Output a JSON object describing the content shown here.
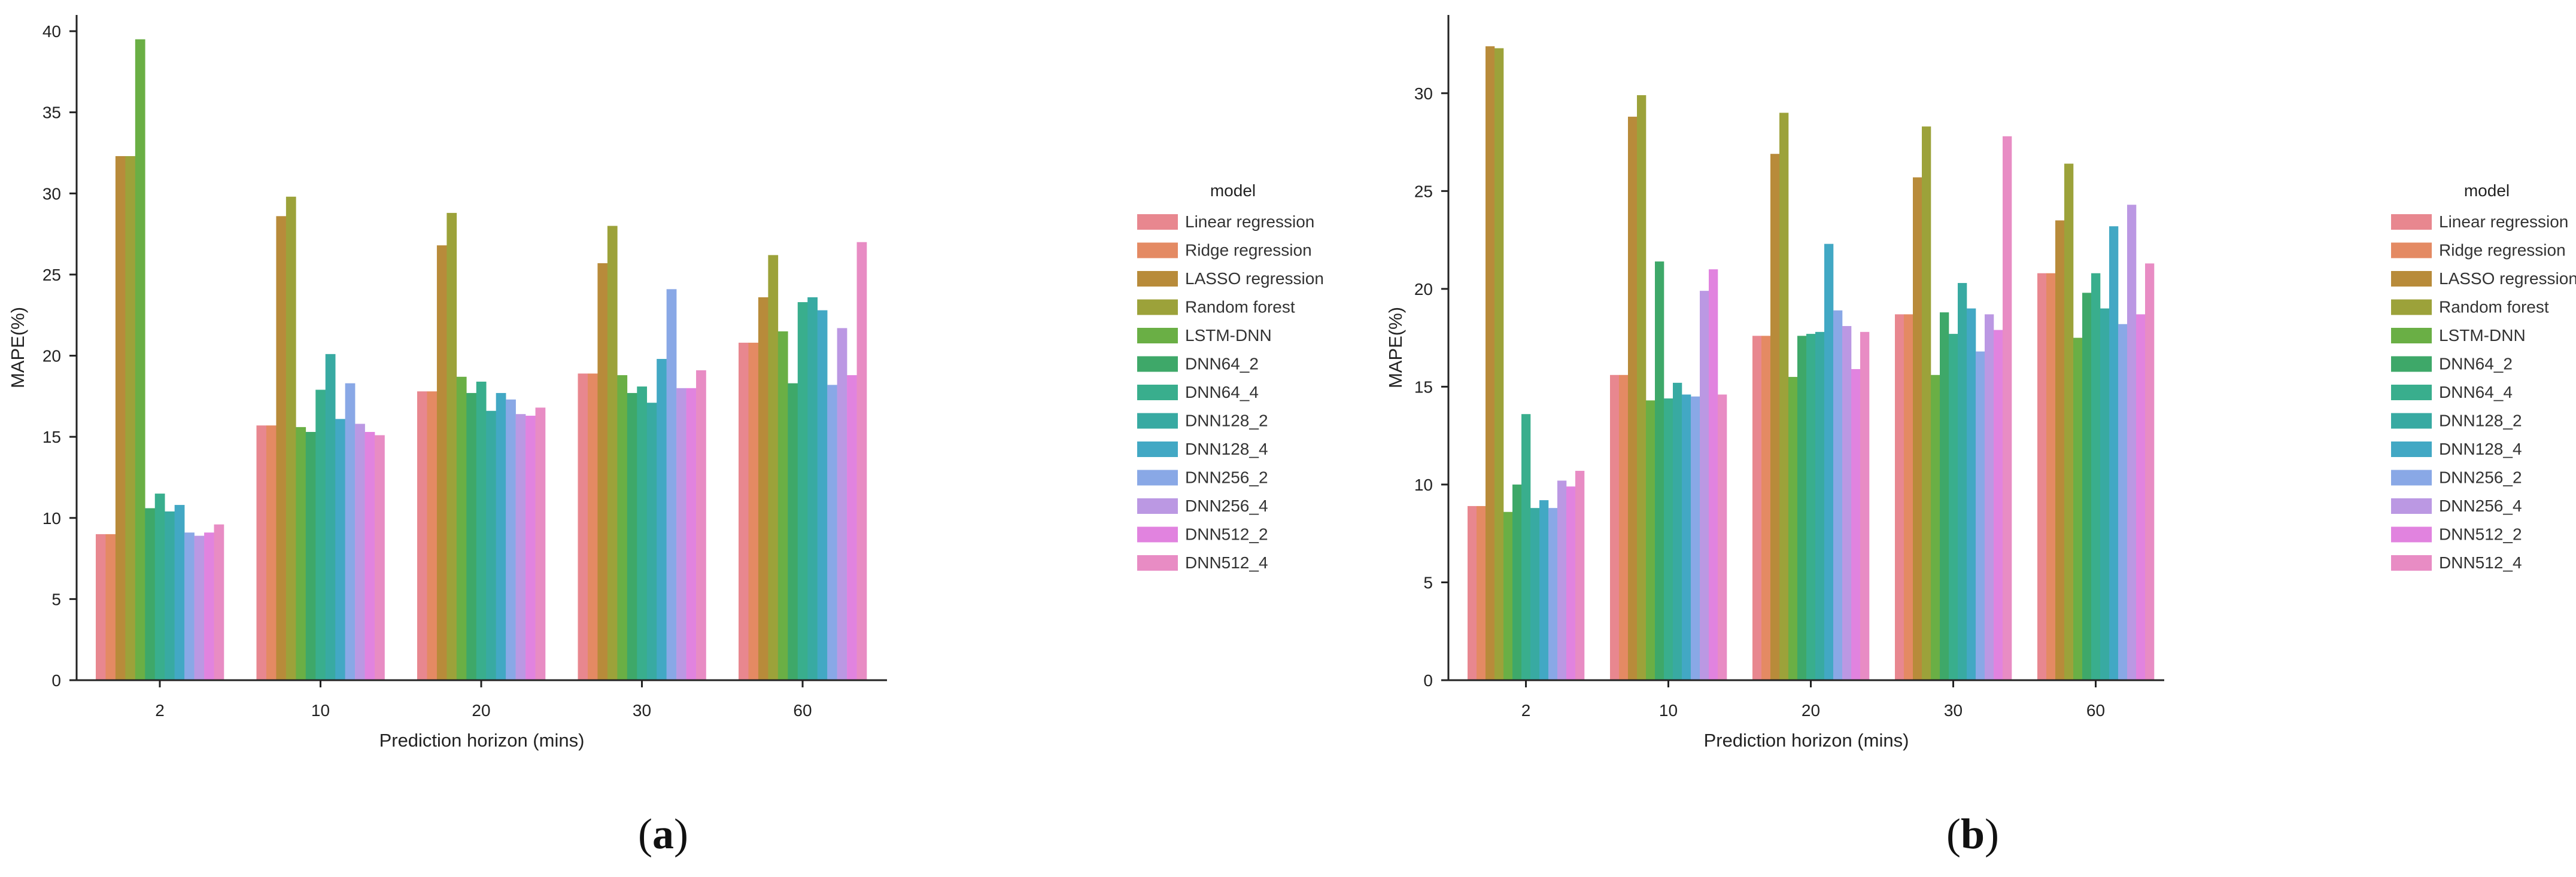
{
  "chart_data": [
    {
      "type": "bar",
      "panel_label": {
        "open": "(",
        "letter": "a",
        "close": ")"
      },
      "xlabel": "Prediction horizon (mins)",
      "ylabel": "MAPE(%)",
      "ylim": [
        0,
        41
      ],
      "yticks": [
        0,
        5,
        10,
        15,
        20,
        25,
        30,
        35,
        40
      ],
      "categories": [
        "2",
        "10",
        "20",
        "30",
        "60"
      ],
      "legend_title": "model",
      "legend_position": "right",
      "series": [
        {
          "name": "Linear regression",
          "color": "#e8878f",
          "values": [
            9.0,
            15.7,
            17.8,
            18.9,
            20.8
          ]
        },
        {
          "name": "Ridge regression",
          "color": "#e48a63",
          "values": [
            9.0,
            15.7,
            17.8,
            18.9,
            20.8
          ]
        },
        {
          "name": "LASSO regression",
          "color": "#b88b3a",
          "values": [
            32.3,
            28.6,
            26.8,
            25.7,
            23.6
          ]
        },
        {
          "name": "Random forest",
          "color": "#9ca23a",
          "values": [
            32.3,
            29.8,
            28.8,
            28.0,
            26.2
          ]
        },
        {
          "name": "LSTM-DNN",
          "color": "#6aaf45",
          "values": [
            39.5,
            15.6,
            18.7,
            18.8,
            21.5
          ]
        },
        {
          "name": "DNN64_2",
          "color": "#3ea869",
          "values": [
            10.6,
            15.3,
            17.7,
            17.7,
            18.3
          ]
        },
        {
          "name": "DNN64_4",
          "color": "#39ae8d",
          "values": [
            11.5,
            17.9,
            18.4,
            18.1,
            23.3
          ]
        },
        {
          "name": "DNN128_2",
          "color": "#38aaa2",
          "values": [
            10.4,
            20.1,
            16.6,
            17.1,
            23.6
          ]
        },
        {
          "name": "DNN128_4",
          "color": "#42a8c4",
          "values": [
            10.8,
            16.1,
            17.7,
            19.8,
            22.8
          ]
        },
        {
          "name": "DNN256_2",
          "color": "#89a8e6",
          "values": [
            9.1,
            18.3,
            17.3,
            24.1,
            18.2
          ]
        },
        {
          "name": "DNN256_4",
          "color": "#bb98e3",
          "values": [
            8.9,
            15.8,
            16.4,
            18.0,
            21.7
          ]
        },
        {
          "name": "DNN512_2",
          "color": "#e183df",
          "values": [
            9.1,
            15.3,
            16.3,
            18.0,
            18.8
          ]
        },
        {
          "name": "DNN512_4",
          "color": "#e88cc4",
          "values": [
            9.6,
            15.1,
            16.8,
            19.1,
            27.0
          ]
        }
      ]
    },
    {
      "type": "bar",
      "panel_label": {
        "open": "(",
        "letter": "b",
        "close": ")"
      },
      "xlabel": "Prediction horizon (mins)",
      "ylabel": "MAPE(%)",
      "ylim": [
        0,
        34
      ],
      "yticks": [
        0,
        5,
        10,
        15,
        20,
        25,
        30
      ],
      "categories": [
        "2",
        "10",
        "20",
        "30",
        "60"
      ],
      "legend_title": "model",
      "legend_position": "right",
      "series": [
        {
          "name": "Linear regression",
          "color": "#e8878f",
          "values": [
            8.9,
            15.6,
            17.6,
            18.7,
            20.8
          ]
        },
        {
          "name": "Ridge regression",
          "color": "#e48a63",
          "values": [
            8.9,
            15.6,
            17.6,
            18.7,
            20.8
          ]
        },
        {
          "name": "LASSO regression",
          "color": "#b88b3a",
          "values": [
            32.4,
            28.8,
            26.9,
            25.7,
            23.5
          ]
        },
        {
          "name": "Random forest",
          "color": "#9ca23a",
          "values": [
            32.3,
            29.9,
            29.0,
            28.3,
            26.4
          ]
        },
        {
          "name": "LSTM-DNN",
          "color": "#6aaf45",
          "values": [
            8.6,
            14.3,
            15.5,
            15.6,
            17.5
          ]
        },
        {
          "name": "DNN64_2",
          "color": "#3ea869",
          "values": [
            10.0,
            21.4,
            17.6,
            18.8,
            19.8
          ]
        },
        {
          "name": "DNN64_4",
          "color": "#39ae8d",
          "values": [
            13.6,
            14.4,
            17.7,
            17.7,
            20.8
          ]
        },
        {
          "name": "DNN128_2",
          "color": "#38aaa2",
          "values": [
            8.8,
            15.2,
            17.8,
            20.3,
            19.0
          ]
        },
        {
          "name": "DNN128_4",
          "color": "#42a8c4",
          "values": [
            9.2,
            14.6,
            22.3,
            19.0,
            23.2
          ]
        },
        {
          "name": "DNN256_2",
          "color": "#89a8e6",
          "values": [
            8.8,
            14.5,
            18.9,
            16.8,
            18.2
          ]
        },
        {
          "name": "DNN256_4",
          "color": "#bb98e3",
          "values": [
            10.2,
            19.9,
            18.1,
            18.7,
            24.3
          ]
        },
        {
          "name": "DNN512_2",
          "color": "#e183df",
          "values": [
            9.9,
            21.0,
            15.9,
            17.9,
            18.7
          ]
        },
        {
          "name": "DNN512_4",
          "color": "#e88cc4",
          "values": [
            10.7,
            14.6,
            17.8,
            27.8,
            21.3
          ]
        }
      ]
    }
  ]
}
